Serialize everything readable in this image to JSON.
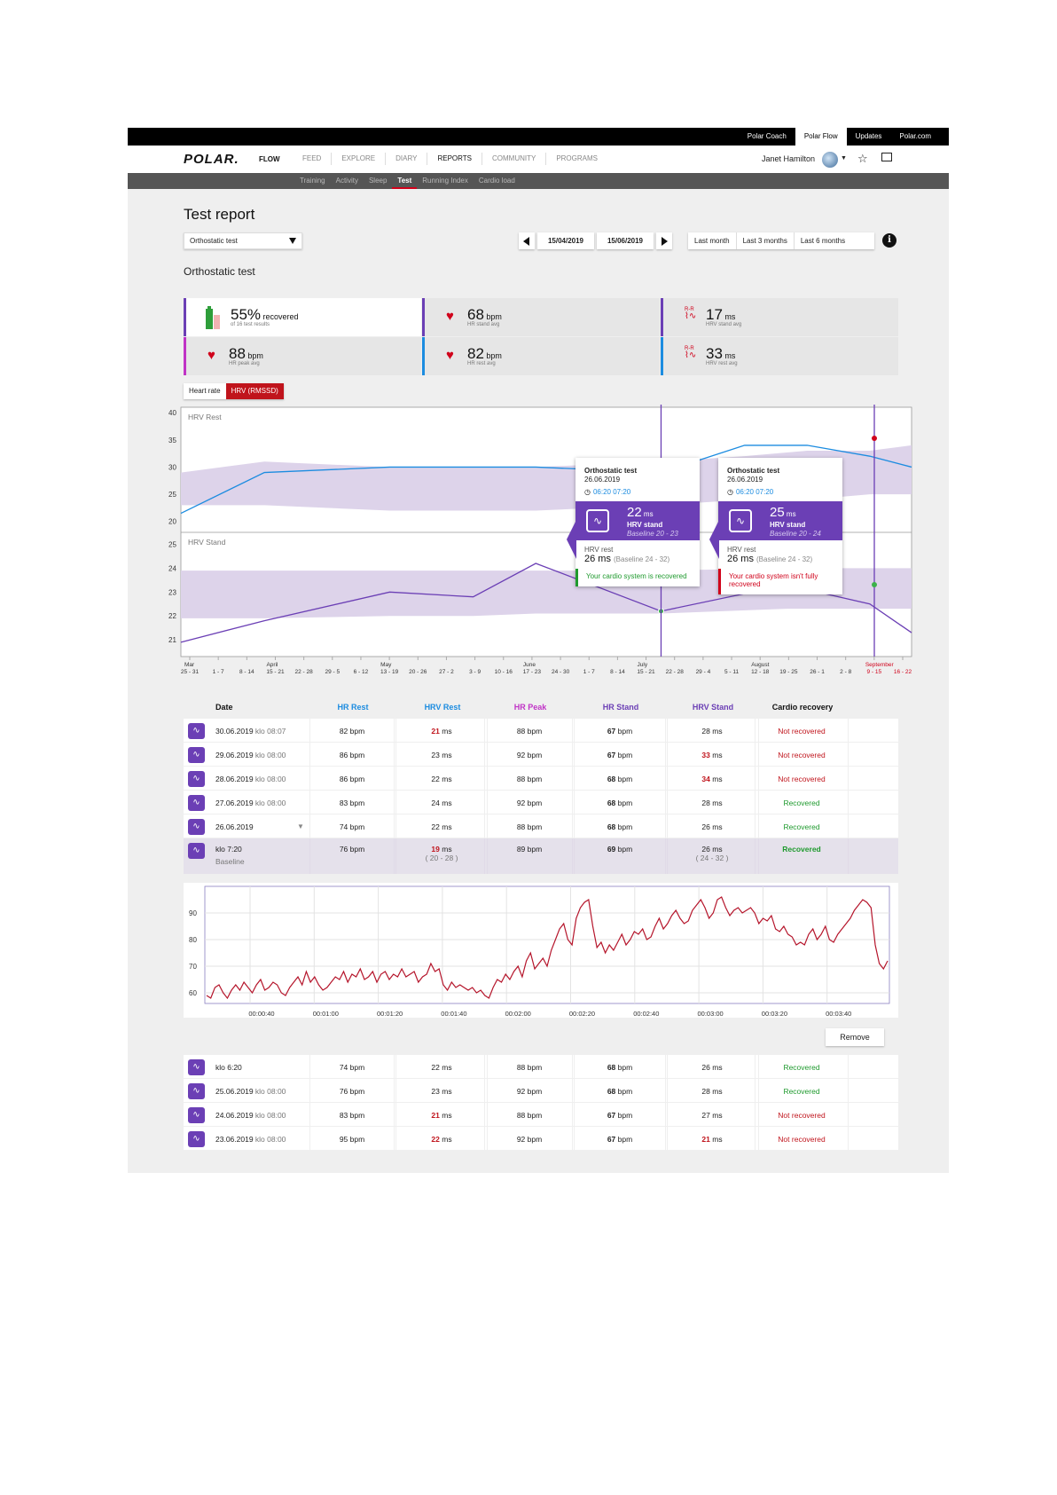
{
  "topbar": {
    "links": [
      "Polar Coach",
      "Polar Flow",
      "Updates",
      "Polar.com"
    ],
    "active": "Polar Flow"
  },
  "nav": {
    "logo": "POLAR.",
    "logo_sub": "FLOW",
    "items": [
      "FEED",
      "EXPLORE",
      "DIARY",
      "REPORTS",
      "COMMUNITY",
      "PROGRAMS"
    ],
    "active": "REPORTS",
    "user_name": "Janet Hamilton"
  },
  "subnav": {
    "items": [
      "Training",
      "Activity",
      "Sleep",
      "Test",
      "Running Index",
      "Cardio load"
    ],
    "active": "Test"
  },
  "page": {
    "title": "Test report",
    "select_value": "Orthostatic test",
    "date_from": "15/04/2019",
    "date_to": "15/06/2019",
    "ranges": [
      "Last month",
      "Last 3 months",
      "Last 6 months"
    ],
    "info": "i",
    "subtitle": "Orthostatic test"
  },
  "cards": [
    {
      "value": "55%",
      "unit": "recovered",
      "sub": "of 16 test results",
      "icon": "battery-icon",
      "accent": "#6b3fb5"
    },
    {
      "value": "68",
      "unit": "bpm",
      "sub": "HR stand avg",
      "icon": "heart-icon",
      "accent": "#6b3fb5"
    },
    {
      "value": "17",
      "unit": "ms",
      "sub": "HRV stand avg",
      "icon": "rr-icon",
      "accent": "#6b3fb5"
    },
    {
      "value": "88",
      "unit": "bpm",
      "sub": "HR peak avg",
      "icon": "heart-icon",
      "accent": "#c033c6"
    },
    {
      "value": "82",
      "unit": "bpm",
      "sub": "HR rest avg",
      "icon": "heart-icon",
      "accent": "#1c8ce0"
    },
    {
      "value": "33",
      "unit": "ms",
      "sub": "HRV rest avg",
      "icon": "rr-icon",
      "accent": "#1c8ce0"
    }
  ],
  "rr_label": "R-R",
  "toggle": [
    "Heart rate",
    "HRV (RMSSD)"
  ],
  "toggle_active": "HRV (RMSSD)",
  "chart_data": [
    {
      "type": "line",
      "panels": [
        {
          "label": "HRV Rest",
          "yticks": [
            40,
            35,
            30,
            25,
            20
          ],
          "ylim": [
            18,
            41
          ],
          "x": [
            0,
            4,
            10,
            17,
            23,
            27,
            30,
            33,
            35
          ],
          "values": [
            21.5,
            29,
            30,
            30,
            29,
            34,
            34,
            32,
            30
          ],
          "band_low": [
            23,
            23,
            22,
            22,
            23,
            24,
            24,
            25,
            25
          ],
          "band_high": [
            29,
            31,
            30,
            30,
            31,
            32,
            33,
            33,
            34
          ],
          "color": "#1c8ce0",
          "highlight_index": 4
        },
        {
          "label": "HRV Stand",
          "yticks": [
            25,
            24,
            23,
            22,
            21
          ],
          "ylim": [
            20.3,
            25.5
          ],
          "x": [
            0,
            4,
            10,
            14,
            17,
            23,
            29,
            33,
            35
          ],
          "values": [
            20.9,
            21.8,
            23.0,
            22.8,
            24.2,
            22.2,
            23.3,
            22.5,
            21.3
          ],
          "band_low": [
            21.9,
            21.9,
            22.0,
            22.0,
            22.1,
            22.1,
            22.3,
            22.3,
            22.3
          ],
          "band_high": [
            23.9,
            23.9,
            23.9,
            23.9,
            23.9,
            23.9,
            24.0,
            24.0,
            24.0
          ],
          "color": "#6b3fb5",
          "highlight_index": 5
        }
      ],
      "months": [
        "Mar",
        "April",
        "May",
        "June",
        "July",
        "August",
        "September"
      ],
      "weeks": [
        "25 - 31",
        "1 - 7",
        "8 - 14",
        "15 - 21",
        "22 - 28",
        "29 - 5",
        "6 - 12",
        "13 - 19",
        "20 - 26",
        "27 - 2",
        "3 - 9",
        "10 - 16",
        "17 - 23",
        "24 - 30",
        "1 - 7",
        "8 - 14",
        "15 - 21",
        "22 - 28",
        "29 - 4",
        "5 - 11",
        "12 - 18",
        "19 - 25",
        "26 - 1",
        "2 - 8",
        "9 - 15",
        "16 - 22"
      ]
    },
    {
      "type": "line",
      "title": "",
      "yticks": [
        90,
        80,
        70,
        60
      ],
      "ylim": [
        56,
        100
      ],
      "xticks": [
        "00:00:40",
        "00:01:00",
        "00:01:20",
        "00:01:40",
        "00:02:00",
        "00:02:20",
        "00:02:40",
        "00:03:00",
        "00:03:20",
        "00:03:40"
      ],
      "values": [
        59,
        58,
        62,
        63,
        60,
        58,
        61,
        63,
        61,
        64,
        62,
        60,
        63,
        65,
        61,
        62,
        64,
        63,
        60,
        59,
        62,
        64,
        66,
        63,
        68,
        64,
        66,
        63,
        61,
        62,
        64,
        66,
        65,
        68,
        64,
        67,
        66,
        69,
        65,
        66,
        68,
        64,
        67,
        68,
        65,
        67,
        66,
        69,
        66,
        67,
        68,
        64,
        66,
        67,
        71,
        68,
        69,
        63,
        61,
        64,
        62,
        63,
        62,
        61,
        62,
        60,
        61,
        59,
        58,
        62,
        65,
        64,
        67,
        65,
        68,
        70,
        66,
        72,
        75,
        69,
        71,
        73,
        70,
        76,
        80,
        84,
        86,
        80,
        78,
        88,
        92,
        94,
        95,
        85,
        77,
        79,
        75,
        78,
        76,
        79,
        82,
        78,
        80,
        83,
        82,
        84,
        80,
        81,
        85,
        88,
        84,
        86,
        89,
        91,
        88,
        86,
        87,
        91,
        93,
        95,
        92,
        88,
        90,
        95,
        96,
        92,
        89,
        91,
        92,
        90,
        91,
        92,
        90,
        86,
        88,
        87,
        89,
        84,
        83,
        85,
        82,
        81,
        78,
        79,
        78,
        82,
        84,
        80,
        82,
        85,
        80,
        79,
        82,
        84,
        86,
        88,
        91,
        93,
        95,
        94,
        92,
        78,
        71,
        69,
        72
      ]
    }
  ],
  "tooltips": [
    {
      "title": "Orthostatic test",
      "date": "26.06.2019",
      "time1": "06:20",
      "time2": "07:20",
      "value": "22",
      "unit": "ms",
      "label": "HRV stand",
      "baseline": "Baseline 20 - 23",
      "rest_label": "HRV rest",
      "rest_value": "26 ms",
      "rest_baseline": "(Baseline 24 - 32)",
      "message": "Your cardio system is recovered",
      "ok": true
    },
    {
      "title": "Orthostatic test",
      "date": "26.06.2019",
      "time1": "06:20",
      "time2": "07:20",
      "value": "25",
      "unit": "ms",
      "label": "HRV stand",
      "baseline": "Baseline 20 - 24",
      "rest_label": "HRV rest",
      "rest_value": "26 ms",
      "rest_baseline": "(Baseline 24 - 32)",
      "message": "Your cardio system isn't fully recovered",
      "ok": false
    }
  ],
  "table": {
    "headers": [
      "Date",
      "HR Rest",
      "HRV Rest",
      "HR Peak",
      "HR Stand",
      "HRV Stand",
      "Cardio recovery"
    ],
    "header_colors": [
      "#111111",
      "#1c8ce0",
      "#1c8ce0",
      "#c033c6",
      "#6b3fb5",
      "#6b3fb5",
      "#111111"
    ],
    "rows": [
      {
        "date": "30.06.2019",
        "time": "klo 08:07",
        "hr_rest": "82 bpm",
        "hrv_rest": "21",
        "hrv_rest_red": true,
        "hr_peak": "88 bpm",
        "hr_stand": "67",
        "hrv_stand": "28",
        "hrv_stand_red": false,
        "recovery": "Not recovered",
        "ok": false
      },
      {
        "date": "29.06.2019",
        "time": "klo 08:00",
        "hr_rest": "86 bpm",
        "hrv_rest": "23",
        "hrv_rest_red": false,
        "hr_peak": "92 bpm",
        "hr_stand": "67",
        "hrv_stand": "33",
        "hrv_stand_red": true,
        "recovery": "Not recovered",
        "ok": false
      },
      {
        "date": "28.06.2019",
        "time": "klo 08:00",
        "hr_rest": "86 bpm",
        "hrv_rest": "22",
        "hrv_rest_red": false,
        "hr_peak": "88 bpm",
        "hr_stand": "68",
        "hrv_stand": "34",
        "hrv_stand_red": true,
        "recovery": "Not recovered",
        "ok": false
      },
      {
        "date": "27.06.2019",
        "time": "klo 08:00",
        "hr_rest": "83 bpm",
        "hrv_rest": "24",
        "hrv_rest_red": false,
        "hr_peak": "92 bpm",
        "hr_stand": "68",
        "hrv_stand": "28",
        "hrv_stand_red": false,
        "recovery": "Recovered",
        "ok": true
      },
      {
        "date": "26.06.2019",
        "time": "",
        "hr_rest": "74 bpm",
        "hrv_rest": "22",
        "hrv_rest_red": false,
        "hr_peak": "88 bpm",
        "hr_stand": "68",
        "hrv_stand": "26",
        "hrv_stand_red": false,
        "recovery": "Recovered",
        "ok": true,
        "expand": true
      }
    ],
    "detail": {
      "time": "klo 7:20",
      "sub": "Baseline",
      "hr_rest": "76 bpm",
      "hrv_rest": "19",
      "hrv_rest_range": "( 20 - 28 )",
      "hr_peak": "89 bpm",
      "hr_stand": "69",
      "hrv_stand": "26 ms",
      "hrv_stand_range": "( 24 - 32 )",
      "recovery": "Recovered"
    },
    "unit_ms": "ms",
    "unit_bpm": "bpm",
    "remove": "Remove",
    "rows2": [
      {
        "date": "klo 6:20",
        "time": "",
        "hr_rest": "74 bpm",
        "hrv_rest": "22",
        "hrv_rest_red": false,
        "hr_peak": "88 bpm",
        "hr_stand": "68",
        "hrv_stand": "26",
        "hrv_stand_red": false,
        "recovery": "Recovered",
        "ok": true
      },
      {
        "date": "25.06.2019",
        "time": "klo 08:00",
        "hr_rest": "76 bpm",
        "hrv_rest": "23",
        "hrv_rest_red": false,
        "hr_peak": "92 bpm",
        "hr_stand": "68",
        "hrv_stand": "28",
        "hrv_stand_red": false,
        "recovery": "Recovered",
        "ok": true
      },
      {
        "date": "24.06.2019",
        "time": "klo 08:00",
        "hr_rest": "83 bpm",
        "hrv_rest": "21",
        "hrv_rest_red": true,
        "hr_peak": "88 bpm",
        "hr_stand": "67",
        "hrv_stand": "27",
        "hrv_stand_red": false,
        "recovery": "Not recovered",
        "ok": false
      },
      {
        "date": "23.06.2019",
        "time": "klo 08:00",
        "hr_rest": "95 bpm",
        "hrv_rest": "22",
        "hrv_rest_red": true,
        "hr_peak": "92 bpm",
        "hr_stand": "67",
        "hrv_stand": "21",
        "hrv_stand_red": true,
        "recovery": "Not recovered",
        "ok": false
      }
    ]
  }
}
